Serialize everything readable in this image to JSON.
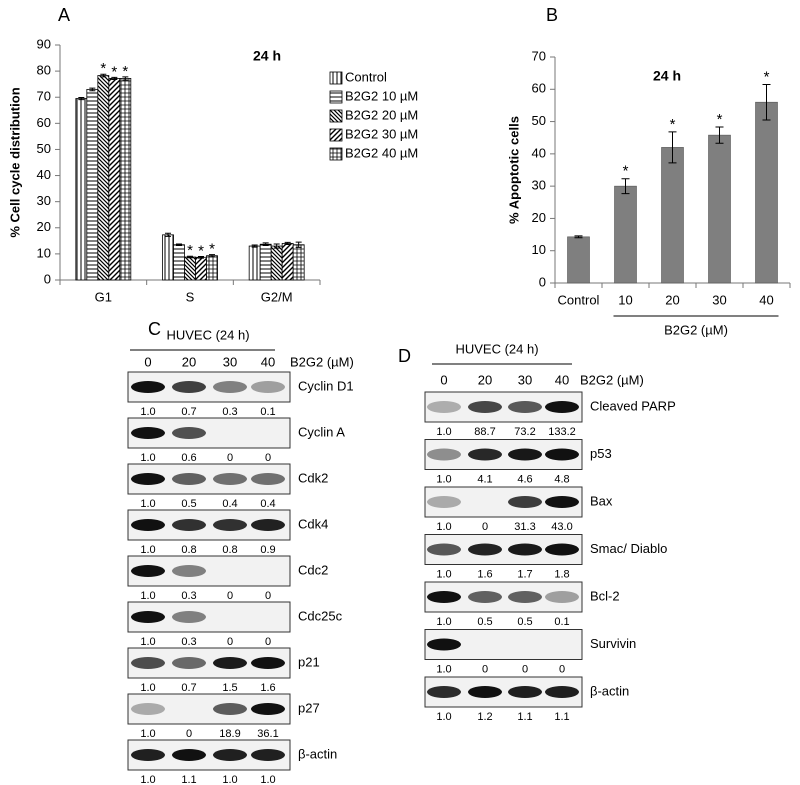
{
  "chart_data": [
    {
      "type": "bar",
      "panel": "A",
      "title": "24 h",
      "ylabel": "% Cell cycle distribution",
      "categories": [
        "G1",
        "S",
        "G2/M"
      ],
      "series": [
        {
          "name": "Control",
          "color": "#000000",
          "pattern": "vertical",
          "values": [
            69.5,
            17.3,
            13.0
          ],
          "errors": [
            0.4,
            0.6,
            0.4
          ],
          "labels": [
            null,
            null,
            null
          ]
        },
        {
          "name": "B2G2 10 µM",
          "color": "#000000",
          "pattern": "horizontal",
          "values": [
            73.0,
            13.5,
            13.7
          ],
          "errors": [
            0.5,
            0.3,
            0.5
          ],
          "labels": [
            null,
            null,
            null
          ]
        },
        {
          "name": "B2G2 20 µM",
          "color": "#000000",
          "pattern": "backdiagonal",
          "values": [
            78.3,
            8.8,
            13.0
          ],
          "errors": [
            0.5,
            0.3,
            0.8
          ],
          "labels": [
            "*",
            "*",
            null
          ]
        },
        {
          "name": "B2G2 30 µM",
          "color": "#000000",
          "pattern": "diagonal",
          "values": [
            77.2,
            8.7,
            14.0
          ],
          "errors": [
            0.4,
            0.3,
            0.4
          ],
          "labels": [
            "*",
            "*",
            null
          ]
        },
        {
          "name": "B2G2 40 µM",
          "color": "#000000",
          "pattern": "grid",
          "values": [
            77.2,
            9.3,
            13.5
          ],
          "errors": [
            0.6,
            0.4,
            1.0
          ],
          "labels": [
            "*",
            "*",
            null
          ]
        }
      ],
      "ylim": [
        0,
        90
      ],
      "yticks": [
        0,
        10,
        20,
        30,
        40,
        50,
        60,
        70,
        80,
        90
      ],
      "legend": "upper right"
    },
    {
      "type": "bar",
      "panel": "B",
      "title": "24 h",
      "ylabel": "% Apoptotic cells",
      "xlabel": "B2G2 (µM)",
      "categories": [
        "Control",
        "10",
        "20",
        "30",
        "40"
      ],
      "values": [
        14.3,
        30.0,
        42.0,
        45.8,
        56.0
      ],
      "errors": [
        0.3,
        2.3,
        4.8,
        2.5,
        5.5
      ],
      "labels": [
        null,
        "*",
        "*",
        "*",
        "*"
      ],
      "color": "#7f7f7f",
      "ylim": [
        0,
        70
      ],
      "yticks": [
        0,
        10,
        20,
        30,
        40,
        50,
        60,
        70
      ]
    }
  ],
  "blots": [
    {
      "panel": "C",
      "header": "HUVEC (24 h)",
      "doses": [
        "0",
        "20",
        "30",
        "40"
      ],
      "dose_label": "B2G2 (µM)",
      "rows": [
        {
          "name": "Cyclin D1",
          "values": [
            "1.0",
            "0.7",
            "0.3",
            "0.1"
          ]
        },
        {
          "name": "Cyclin A",
          "values": [
            "1.0",
            "0.6",
            "0",
            "0"
          ]
        },
        {
          "name": "Cdk2",
          "values": [
            "1.0",
            "0.5",
            "0.4",
            "0.4"
          ]
        },
        {
          "name": "Cdk4",
          "values": [
            "1.0",
            "0.8",
            "0.8",
            "0.9"
          ]
        },
        {
          "name": "Cdc2",
          "values": [
            "1.0",
            "0.3",
            "0",
            "0"
          ]
        },
        {
          "name": "Cdc25c",
          "values": [
            "1.0",
            "0.3",
            "0",
            "0"
          ]
        },
        {
          "name": "p21",
          "values": [
            "1.0",
            "0.7",
            "1.5",
            "1.6"
          ]
        },
        {
          "name": "p27",
          "values": [
            "1.0",
            "0",
            "18.9",
            "36.1"
          ]
        },
        {
          "name": "β-actin",
          "values": [
            "1.0",
            "1.1",
            "1.0",
            "1.0"
          ]
        }
      ]
    },
    {
      "panel": "D",
      "header": "HUVEC (24 h)",
      "doses": [
        "0",
        "20",
        "30",
        "40"
      ],
      "dose_label": "B2G2 (µM)",
      "rows": [
        {
          "name": "Cleaved PARP",
          "values": [
            "1.0",
            "88.7",
            "73.2",
            "133.2"
          ]
        },
        {
          "name": "p53",
          "values": [
            "1.0",
            "4.1",
            "4.6",
            "4.8"
          ]
        },
        {
          "name": "Bax",
          "values": [
            "1.0",
            "0",
            "31.3",
            "43.0"
          ]
        },
        {
          "name": "Smac/ Diablo",
          "values": [
            "1.0",
            "1.6",
            "1.7",
            "1.8"
          ]
        },
        {
          "name": "Bcl-2",
          "values": [
            "1.0",
            "0.5",
            "0.5",
            "0.1"
          ]
        },
        {
          "name": "Survivin",
          "values": [
            "1.0",
            "0",
            "0",
            "0"
          ]
        },
        {
          "name": "β-actin",
          "values": [
            "1.0",
            "1.2",
            "1.1",
            "1.1"
          ]
        }
      ]
    }
  ]
}
